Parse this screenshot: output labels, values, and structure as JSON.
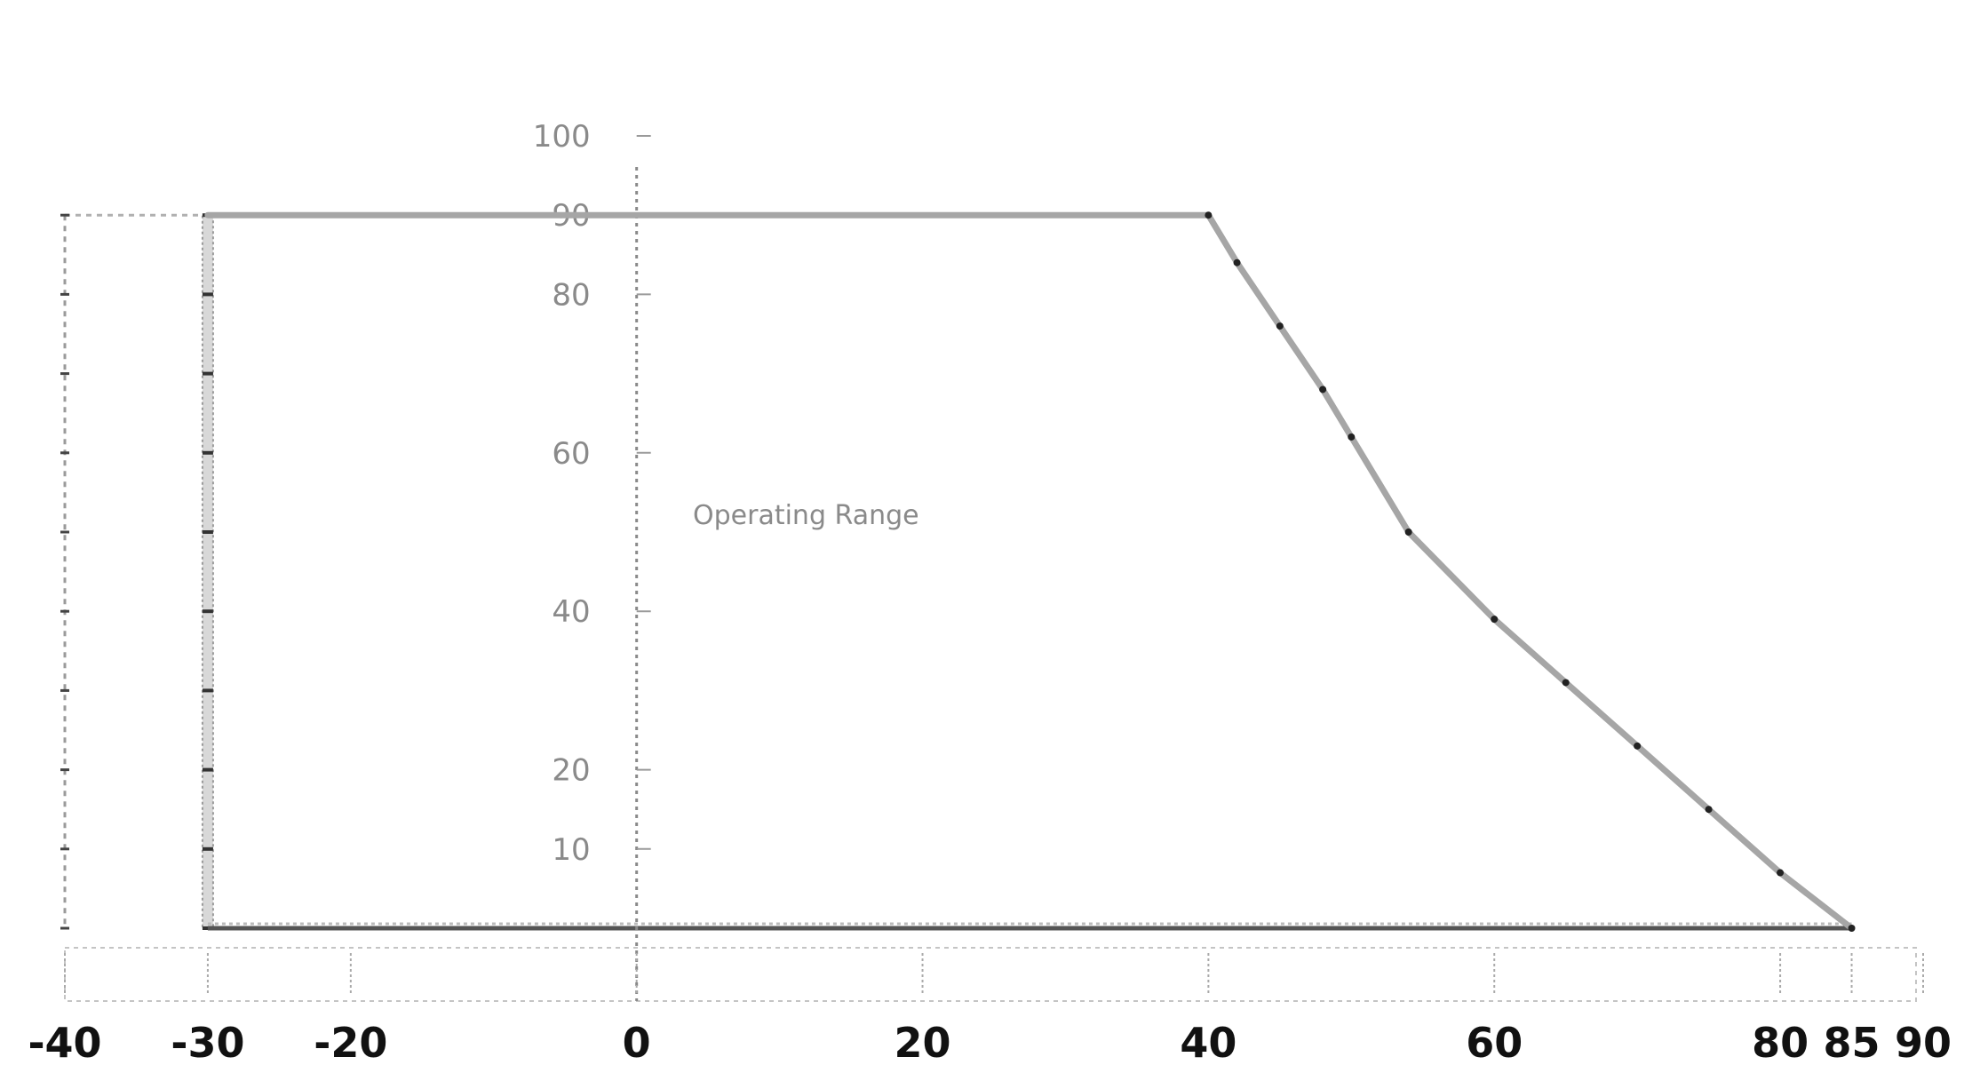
{
  "chart_data": {
    "type": "line",
    "title": "",
    "xlabel": "",
    "ylabel": "",
    "x_ticks": [
      "-40",
      "-30",
      "-20",
      "0",
      "20",
      "40",
      "60",
      "80",
      "85",
      "90"
    ],
    "y_ticks": [
      "100",
      "90",
      "80",
      "60",
      "40",
      "20",
      "10"
    ],
    "xlim": [
      -40,
      90
    ],
    "ylim": [
      0,
      100
    ],
    "annotation": "Operating Range",
    "series": [
      {
        "x": [
          -30,
          40,
          42,
          45,
          48,
          50,
          54,
          60,
          65,
          70,
          75,
          80,
          85
        ],
        "y": [
          90,
          90,
          84,
          76,
          68,
          62,
          50,
          39,
          31,
          23,
          15,
          7,
          0
        ]
      }
    ],
    "range_box": {
      "x_min": -30,
      "x_max": 85,
      "y_min": 0,
      "y_max": 90
    },
    "colors": {
      "curve": "#a6a6a6",
      "ticks": "#111111",
      "labels": "#8a8a8a"
    }
  }
}
